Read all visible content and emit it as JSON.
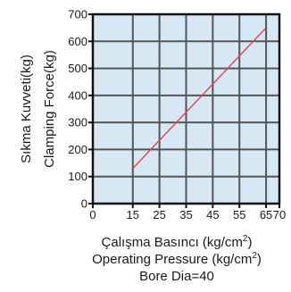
{
  "chart_data": {
    "type": "line",
    "ylabel_lines": [
      "Sıkma Kuvveti(kg)",
      "Clamping Force(kg)"
    ],
    "xlabel_lines": [
      {
        "before": "Çalışma Basıncı (kg/cm",
        "sup": "2",
        "after": ")"
      },
      {
        "before": "Operating Pressure (kg/cm",
        "sup": "2",
        "after": ")"
      },
      {
        "before": "Bore Dia=40",
        "sup": "",
        "after": ""
      }
    ],
    "xlim": [
      0,
      70
    ],
    "ylim": [
      0,
      700
    ],
    "xticks": [
      0,
      15,
      25,
      35,
      45,
      55,
      65,
      70
    ],
    "yticks": [
      0,
      100,
      200,
      300,
      400,
      500,
      600,
      700
    ],
    "grid": true,
    "series": [
      {
        "x": [
          15,
          65
        ],
        "y": [
          130,
          650
        ]
      }
    ],
    "colors": {
      "plot_background": "#d5e8f4",
      "grid": "#555555",
      "frame": "#111111",
      "line": "#e8404c"
    }
  }
}
